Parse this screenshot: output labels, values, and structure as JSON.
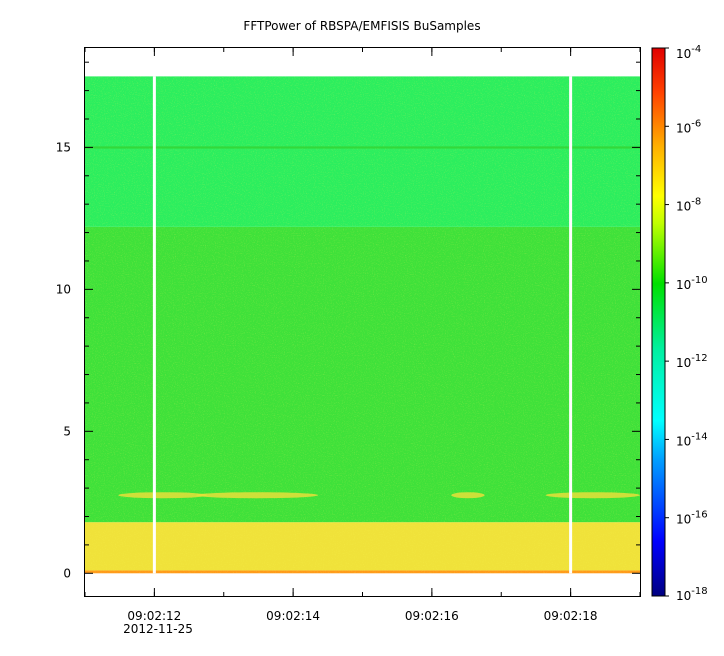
{
  "chart_data": {
    "type": "heatmap",
    "title": "FFTPower of RBSPA/EMFISIS  BuSamples",
    "xlabel": "",
    "ylabel": "",
    "x_ticks": [
      "09:02:12",
      "09:02:14",
      "09:02:16",
      "09:02:18"
    ],
    "x_date_label": "2012-11-25",
    "x_range_seconds": [
      "09:02:11.0",
      "09:02:19.0"
    ],
    "ylim": [
      -0.8,
      18.5
    ],
    "y_ticks": [
      0,
      5,
      10,
      15
    ],
    "grid": false,
    "colorbar": {
      "scale": "log",
      "range": [
        1e-18,
        0.0001
      ],
      "tick_labels": [
        {
          "base": "10",
          "exp": "-4"
        },
        {
          "base": "10",
          "exp": "-6"
        },
        {
          "base": "10",
          "exp": "-8"
        },
        {
          "base": "10",
          "exp": "-10"
        },
        {
          "base": "10",
          "exp": "-12"
        },
        {
          "base": "10",
          "exp": "-14"
        },
        {
          "base": "10",
          "exp": "-16"
        },
        {
          "base": "10",
          "exp": "-18"
        }
      ],
      "colormap": [
        "#000080",
        "#0000ff",
        "#00c0ff",
        "#00ffc0",
        "#00e000",
        "#c0ff00",
        "#ffff00",
        "#ffa000",
        "#ff3000",
        "#e00000"
      ]
    },
    "bands": [
      {
        "y_from": 0.0,
        "y_to": 0.1,
        "level": "1e-7",
        "color": "#ff9a1a"
      },
      {
        "y_from": 0.1,
        "y_to": 1.8,
        "level": "1e-8",
        "color": "#f0e23a"
      },
      {
        "y_from": 1.8,
        "y_to": 12.2,
        "level": "1e-10",
        "color": "#3fe13a"
      },
      {
        "y_from": 12.2,
        "y_to": 17.5,
        "level": "1e-12",
        "color": "#2cee5e"
      }
    ],
    "line_15": {
      "y": 15.0,
      "color": "#34d83a"
    },
    "gaps_time": [
      "09:02:12.0",
      "09:02:18.0"
    ]
  }
}
